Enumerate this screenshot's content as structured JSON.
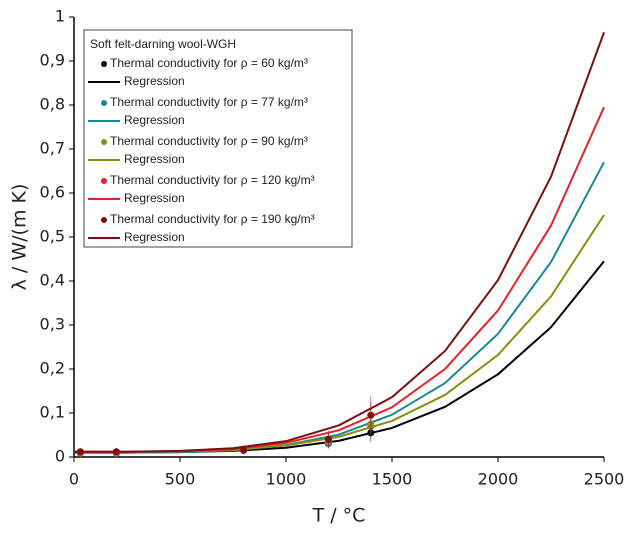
{
  "chart_data": {
    "type": "scatter",
    "x_label": "T / °C",
    "y_label": "λ / W/(m K)",
    "legend_title": "Soft felt-darning wool-WGH",
    "xlim": [
      0,
      2500
    ],
    "ylim": [
      0,
      1
    ],
    "xticks": [
      0,
      500,
      1000,
      1500,
      2000,
      2500
    ],
    "yticks": [
      0,
      {
        "value": 0.1,
        "label": "0,1"
      },
      {
        "value": 0.2,
        "label": "0,2"
      },
      {
        "value": 0.3,
        "label": "0,3"
      },
      {
        "value": 0.4,
        "label": "0,4"
      },
      {
        "value": 0.5,
        "label": "0,5"
      },
      {
        "value": 0.6,
        "label": "0,6"
      },
      {
        "value": 0.7,
        "label": "0,7"
      },
      {
        "value": 0.8,
        "label": "0,8"
      },
      {
        "value": 0.9,
        "label": "0,9"
      },
      1
    ],
    "x": [
      30,
      200,
      800,
      1200,
      1400
    ],
    "fit_x": [
      0,
      250,
      500,
      750,
      1000,
      1250,
      1500,
      1750,
      2000,
      2250,
      2500
    ],
    "series": [
      {
        "name": "Thermal conductivity for ρ = 60 kg/m³",
        "fit_name": "Regression",
        "color": "#000000",
        "values": [
          0.01,
          0.01,
          0.015,
          0.03,
          0.055
        ],
        "errors": [
          0.003,
          0.003,
          0.003,
          0.01,
          0.02
        ],
        "fit_values": [
          0.01,
          0.01,
          0.011,
          0.014,
          0.021,
          0.037,
          0.066,
          0.114,
          0.188,
          0.295,
          0.445
        ]
      },
      {
        "name": "Thermal conductivity for ρ = 77 kg/m³",
        "fit_name": "Regression",
        "color": "#1a8a92",
        "values": [
          0.008,
          0.008,
          0.016,
          0.03,
          0.07
        ],
        "errors": [
          0.003,
          0.003,
          0.003,
          0.01,
          0.02
        ],
        "fit_values": [
          0.01,
          0.01,
          0.011,
          0.015,
          0.027,
          0.051,
          0.096,
          0.168,
          0.28,
          0.443,
          0.67
        ]
      },
      {
        "name": "Thermal conductivity for ρ = 90 kg/m³",
        "fit_name": "Regression",
        "color": "#8c8c10",
        "values": [
          0.009,
          0.009,
          0.018,
          0.035,
          0.075
        ],
        "errors": [
          0.003,
          0.003,
          0.003,
          0.01,
          0.02
        ],
        "fit_values": [
          0.012,
          0.012,
          0.013,
          0.016,
          0.026,
          0.046,
          0.082,
          0.141,
          0.232,
          0.365,
          0.55
        ]
      },
      {
        "name": "Thermal conductivity for ρ = 120 kg/m³",
        "fit_name": "Regression",
        "color": "#e8202a",
        "values": [
          0.012,
          0.012,
          0.016,
          0.04,
          0.095
        ],
        "errors": [
          0.003,
          0.003,
          0.003,
          0.02,
          0.045
        ],
        "fit_values": [
          0.012,
          0.012,
          0.013,
          0.018,
          0.032,
          0.061,
          0.113,
          0.2,
          0.333,
          0.526,
          0.795
        ]
      },
      {
        "name": "Thermal conductivity for ρ = 190 kg/m³",
        "fit_name": "Regression",
        "color": "#7a1010",
        "values": [
          0.012,
          0.012,
          0.015,
          0.04,
          0.095
        ],
        "errors": [
          0.003,
          0.003,
          0.003,
          0.015,
          0.03
        ],
        "fit_values": [
          0.012,
          0.012,
          0.014,
          0.02,
          0.036,
          0.072,
          0.136,
          0.241,
          0.402,
          0.637,
          0.965
        ]
      }
    ]
  }
}
